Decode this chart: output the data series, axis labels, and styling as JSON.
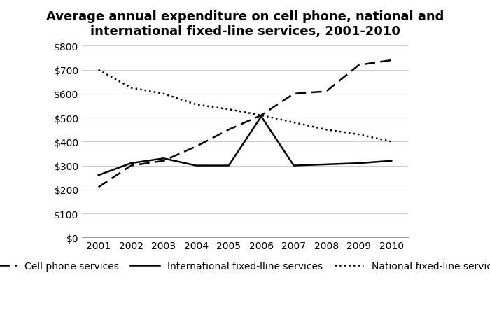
{
  "title": "Average annual expenditure on cell phone, national and\ninternational fixed-line services, 2001-2010",
  "years": [
    2001,
    2002,
    2003,
    2004,
    2005,
    2006,
    2007,
    2008,
    2009,
    2010
  ],
  "cell_phone": [
    210,
    300,
    320,
    380,
    450,
    510,
    600,
    610,
    720,
    740
  ],
  "international_fixed": [
    260,
    310,
    330,
    300,
    300,
    505,
    300,
    305,
    310,
    320
  ],
  "national_fixed": [
    700,
    625,
    600,
    555,
    535,
    510,
    480,
    450,
    430,
    400
  ],
  "ylim": [
    0,
    800
  ],
  "yticks": [
    0,
    100,
    200,
    300,
    400,
    500,
    600,
    700,
    800
  ],
  "ytick_labels": [
    "$0",
    "$100",
    "$200",
    "$300",
    "$400",
    "$500",
    "$600",
    "$700",
    "$800"
  ],
  "background_color": "#ffffff",
  "grid_color": "#cccccc",
  "line_color": "#000000",
  "legend_labels": [
    "Cell phone services",
    "International fixed-lline services",
    "National fixed-line services"
  ],
  "title_fontsize": 13,
  "tick_fontsize": 10,
  "legend_fontsize": 10
}
